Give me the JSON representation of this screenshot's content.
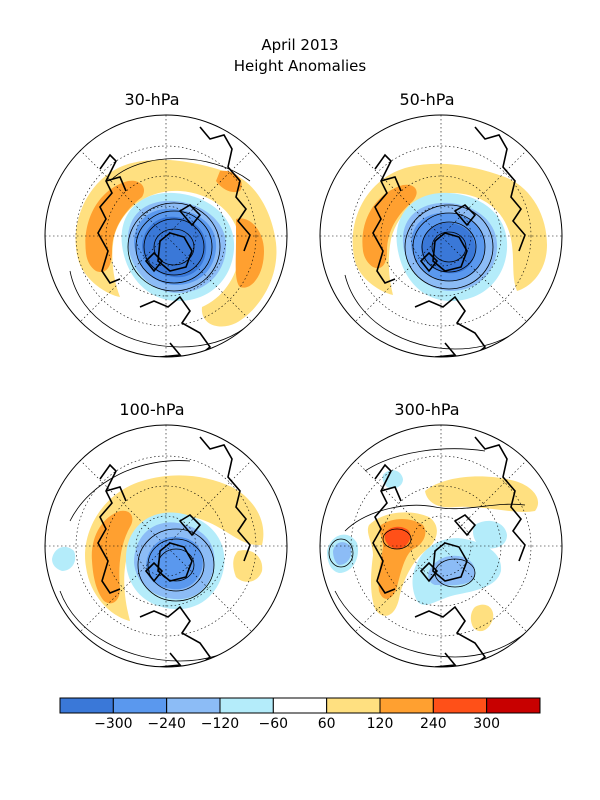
{
  "header": {
    "title": "April 2013",
    "subtitle": "Height Anomalies"
  },
  "panels": [
    {
      "label": "30-hPa"
    },
    {
      "label": "50-hPa"
    },
    {
      "label": "100-hPa"
    },
    {
      "label": "300-hPa"
    }
  ],
  "colorbar": {
    "colors": [
      "#3a78d8",
      "#5a98ee",
      "#8cbcf6",
      "#b4ecfa",
      "#ffffff",
      "#ffe080",
      "#ffa030",
      "#ff5018",
      "#c80000"
    ],
    "tick_labels": [
      "-300",
      "-240",
      "-120",
      "-60",
      "60",
      "120",
      "240",
      "300"
    ]
  },
  "colors": {
    "land_outline": "#000000",
    "grid": "#000000",
    "contour": "#000000"
  }
}
